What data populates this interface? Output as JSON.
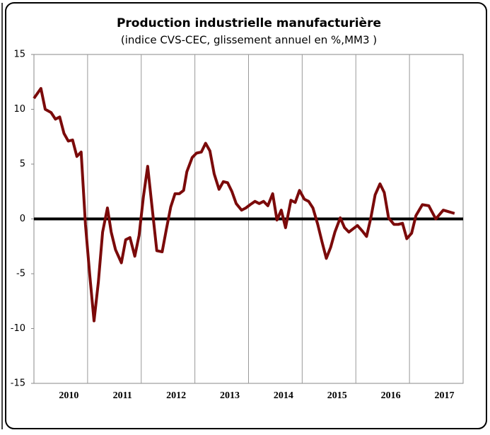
{
  "chart_data": {
    "type": "line",
    "title": "Production industrielle manufacturière",
    "subtitle": "(indice CVS-CEC, glissement annuel en %,MM3 )",
    "x": [
      2010.0,
      2010.13,
      2010.21,
      2010.32,
      2010.4,
      2010.48,
      2010.56,
      2010.64,
      2010.72,
      2010.8,
      2010.88,
      2010.96,
      2011.04,
      2011.12,
      2011.2,
      2011.28,
      2011.37,
      2011.44,
      2011.52,
      2011.63,
      2011.71,
      2011.79,
      2011.88,
      2011.96,
      2012.04,
      2012.12,
      2012.21,
      2012.29,
      2012.39,
      2012.47,
      2012.55,
      2012.63,
      2012.71,
      2012.79,
      2012.85,
      2012.95,
      2013.03,
      2013.12,
      2013.2,
      2013.28,
      2013.36,
      2013.45,
      2013.53,
      2013.61,
      2013.69,
      2013.77,
      2013.87,
      2013.95,
      2014.03,
      2014.12,
      2014.2,
      2014.28,
      2014.36,
      2014.45,
      2014.53,
      2014.61,
      2014.69,
      2014.79,
      2014.87,
      2014.95,
      2015.04,
      2015.12,
      2015.2,
      2015.29,
      2015.37,
      2015.45,
      2015.53,
      2015.61,
      2015.71,
      2015.79,
      2015.87,
      2015.95,
      2016.03,
      2016.12,
      2016.2,
      2016.28,
      2016.36,
      2016.45,
      2016.53,
      2016.61,
      2016.71,
      2016.79,
      2016.87,
      2016.95,
      2017.04,
      2017.12,
      2017.24,
      2017.36,
      2017.49,
      2017.63,
      2017.84
    ],
    "values": [
      11.0,
      11.9,
      10.0,
      9.7,
      9.1,
      9.3,
      7.8,
      7.1,
      7.2,
      5.7,
      6.1,
      -0.5,
      -5.1,
      -9.3,
      -5.8,
      -1.2,
      1.0,
      -1.2,
      -2.8,
      -4.0,
      -1.9,
      -1.7,
      -3.4,
      -1.5,
      2.0,
      4.8,
      0.7,
      -2.9,
      -3.0,
      -0.9,
      1.1,
      2.3,
      2.3,
      2.6,
      4.3,
      5.6,
      6.0,
      6.1,
      6.9,
      6.2,
      4.1,
      2.7,
      3.4,
      3.3,
      2.5,
      1.4,
      0.8,
      1.0,
      1.3,
      1.6,
      1.4,
      1.6,
      1.2,
      2.3,
      -0.1,
      0.8,
      -0.8,
      1.7,
      1.5,
      2.6,
      1.8,
      1.6,
      1.0,
      -0.5,
      -2.1,
      -3.6,
      -2.6,
      -1.2,
      0.1,
      -0.8,
      -1.2,
      -0.9,
      -0.6,
      -1.1,
      -1.6,
      0.1,
      2.2,
      3.2,
      2.4,
      0.1,
      -0.5,
      -0.5,
      -0.4,
      -1.8,
      -1.3,
      0.3,
      1.3,
      1.2,
      0.0,
      0.8,
      0.5
    ],
    "color": "#7b0a0a",
    "xlim": [
      2010,
      2018
    ],
    "xticks": [
      {
        "value": 2010.65,
        "label": "2010"
      },
      {
        "value": 2011.65,
        "label": "2011"
      },
      {
        "value": 2012.65,
        "label": "2012"
      },
      {
        "value": 2013.65,
        "label": "2013"
      },
      {
        "value": 2014.65,
        "label": "2014"
      },
      {
        "value": 2015.65,
        "label": "2015"
      },
      {
        "value": 2016.65,
        "label": "2016"
      },
      {
        "value": 2017.65,
        "label": "2017"
      }
    ],
    "xgrid": [
      2011,
      2012,
      2013,
      2014,
      2015,
      2016,
      2017
    ],
    "ylim": [
      -15,
      15
    ],
    "yticks": [
      -15,
      -10,
      -5,
      0,
      5,
      10,
      15
    ],
    "grid": true
  }
}
